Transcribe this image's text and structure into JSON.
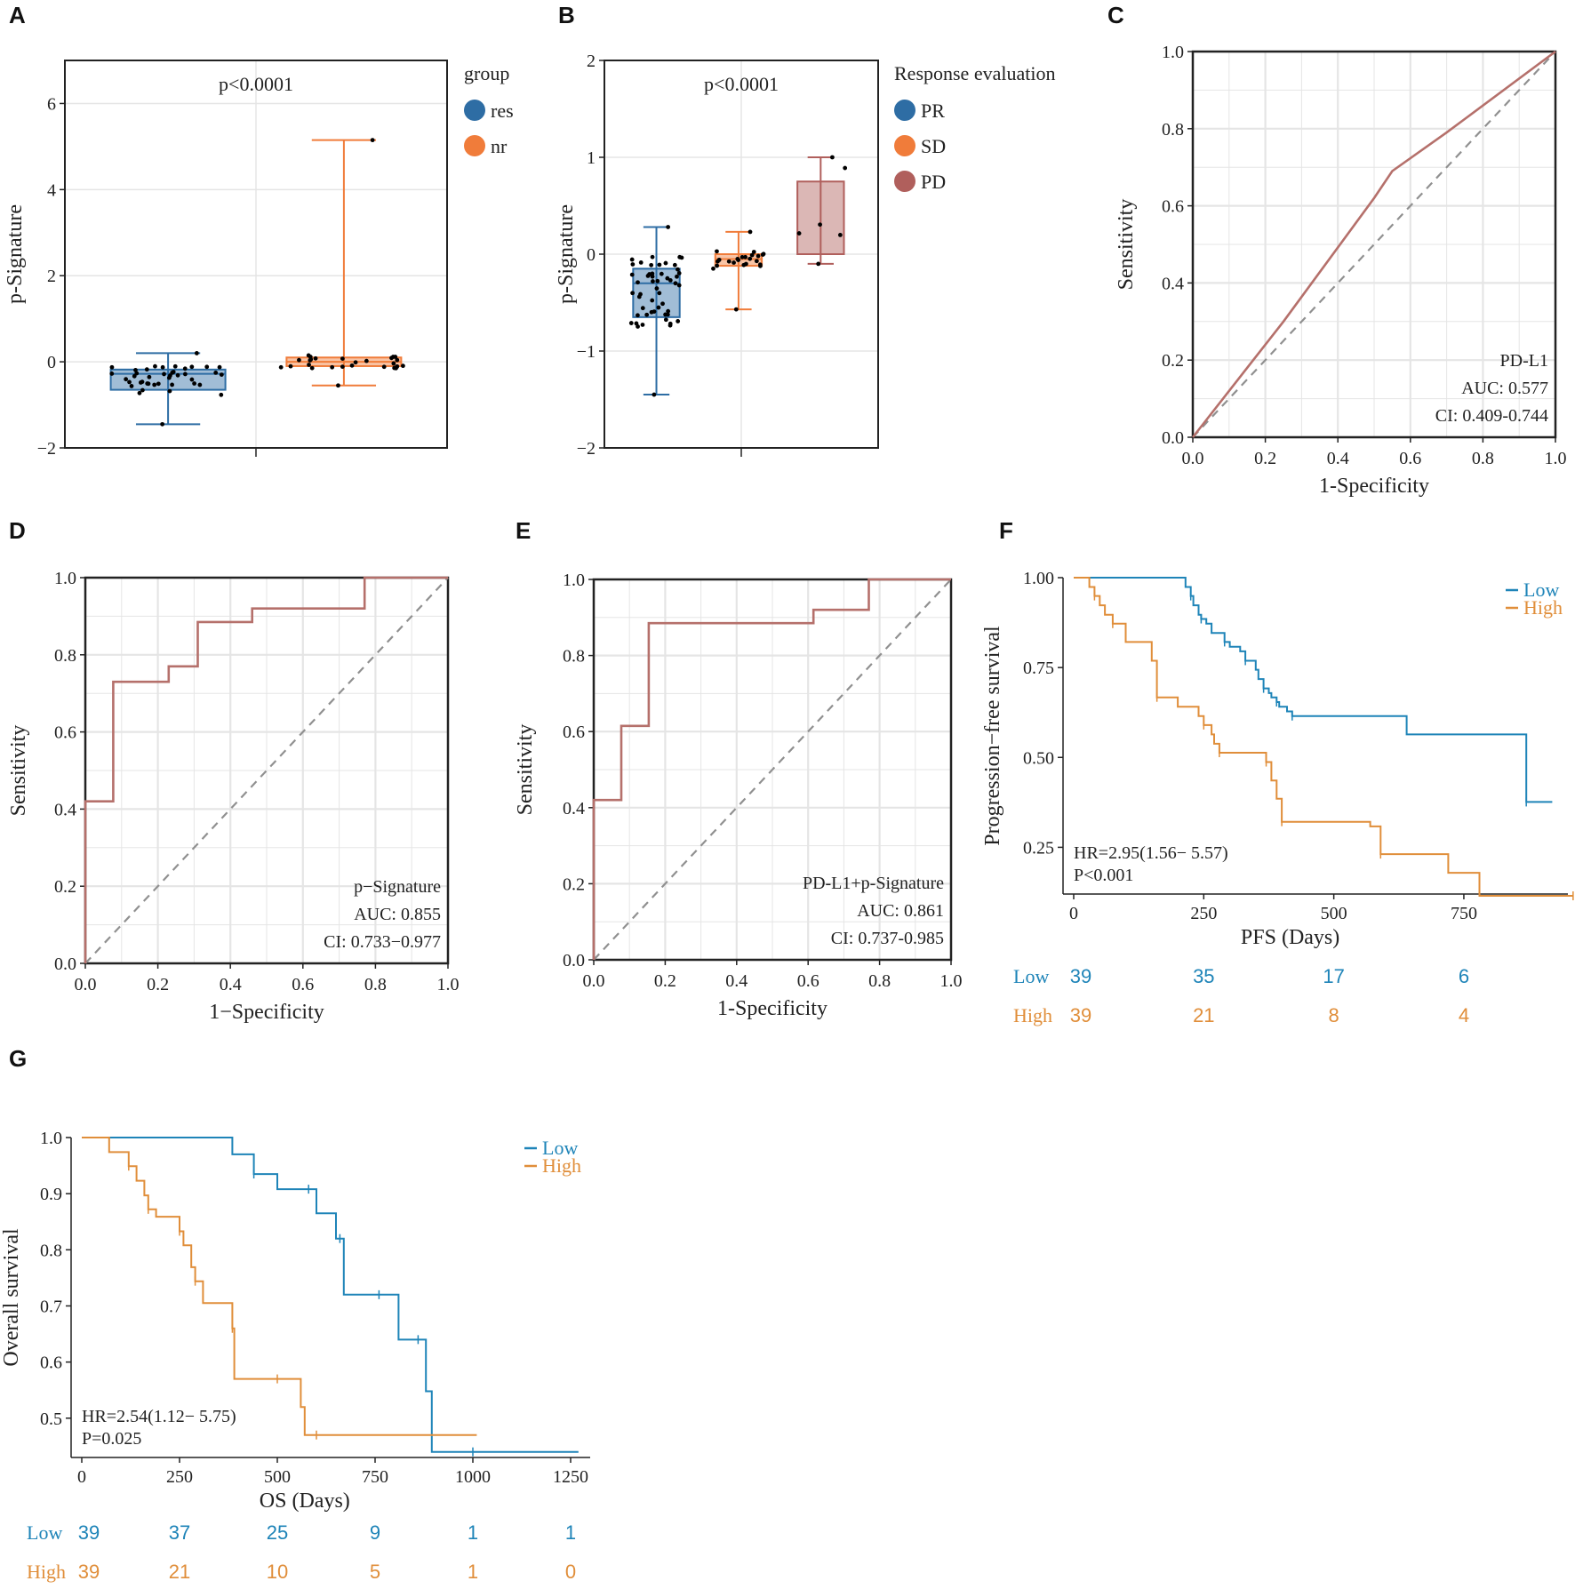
{
  "colors": {
    "blue": "#2e6da4",
    "orange": "#f07c3a",
    "brown": "#b05f5c",
    "roc": "#b5706b",
    "low": "#1e84b8",
    "high": "#e08e3a",
    "grid": "#e5e5e5",
    "diag": "#909090"
  },
  "chart_data": [
    {
      "panel": "A",
      "type": "box",
      "title": "p<0.0001",
      "ylabel": "p-Signature",
      "ylim": [
        -2,
        7
      ],
      "yticks": [
        "−2",
        "0",
        "2",
        "4",
        "6"
      ],
      "legend": {
        "title": "group",
        "placement": "right",
        "labels": [
          "res",
          "nr"
        ]
      },
      "groups": [
        {
          "name": "res",
          "q1": -0.65,
          "median": -0.28,
          "q3": -0.18,
          "whisker_low": -1.45,
          "whisker_high": 0.2
        },
        {
          "name": "nr",
          "q1": -0.1,
          "median": 0.0,
          "q3": 0.1,
          "whisker_low": -0.55,
          "whisker_high": 5.15
        }
      ]
    },
    {
      "panel": "B",
      "type": "box",
      "title": "p<0.0001",
      "ylabel": "p-Signature",
      "ylim": [
        -2,
        2
      ],
      "yticks": [
        "−2",
        "−1",
        "0",
        "1",
        "2"
      ],
      "legend": {
        "title": "Response evaluation",
        "placement": "right",
        "labels": [
          "PR",
          "SD",
          "PD"
        ]
      },
      "groups": [
        {
          "name": "PR",
          "q1": -0.65,
          "median": -0.3,
          "q3": -0.15,
          "whisker_low": -1.45,
          "whisker_high": 0.28
        },
        {
          "name": "SD",
          "q1": -0.12,
          "median": -0.05,
          "q3": 0.0,
          "whisker_low": -0.57,
          "whisker_high": 0.23
        },
        {
          "name": "PD",
          "q1": 0.0,
          "median": 0.0,
          "q3": 0.75,
          "whisker_low": -0.1,
          "whisker_high": 1.0
        }
      ]
    },
    {
      "panel": "C",
      "type": "line",
      "subtype": "roc",
      "xlabel": "1-Specificity",
      "ylabel": "Sensitivity",
      "xlim": [
        0,
        1
      ],
      "ylim": [
        0,
        1
      ],
      "ticks": [
        "0.0",
        "0.2",
        "0.4",
        "0.6",
        "0.8",
        "1.0"
      ],
      "x": [
        0,
        0.25,
        0.5,
        0.55,
        0.7,
        1.0
      ],
      "y": [
        0,
        0.3,
        0.62,
        0.69,
        0.79,
        1.0
      ],
      "annotation": [
        "PD-L1",
        "AUC: 0.577",
        "CI: 0.409-0.744"
      ]
    },
    {
      "panel": "D",
      "type": "line",
      "subtype": "roc",
      "xlabel": "1−Specificity",
      "ylabel": "Sensitivity",
      "xlim": [
        0,
        1
      ],
      "ylim": [
        0,
        1
      ],
      "ticks": [
        "0.0",
        "0.2",
        "0.4",
        "0.6",
        "0.8",
        "1.0"
      ],
      "x": [
        0,
        0,
        0.077,
        0.077,
        0.23,
        0.23,
        0.31,
        0.31,
        0.46,
        0.46,
        0.77,
        0.77,
        1.0
      ],
      "y": [
        0,
        0.42,
        0.42,
        0.73,
        0.73,
        0.77,
        0.77,
        0.885,
        0.885,
        0.92,
        0.92,
        1.0,
        1.0
      ],
      "annotation": [
        "p−Signature",
        "AUC: 0.855",
        "CI: 0.733−0.977"
      ]
    },
    {
      "panel": "E",
      "type": "line",
      "subtype": "roc",
      "xlabel": "1-Specificity",
      "ylabel": "Sensitivity",
      "xlim": [
        0,
        1
      ],
      "ylim": [
        0,
        1
      ],
      "ticks": [
        "0.0",
        "0.2",
        "0.4",
        "0.6",
        "0.8",
        "1.0"
      ],
      "x": [
        0,
        0,
        0.077,
        0.077,
        0.154,
        0.154,
        0.615,
        0.615,
        0.77,
        0.77,
        1.0
      ],
      "y": [
        0,
        0.42,
        0.42,
        0.615,
        0.615,
        0.885,
        0.885,
        0.92,
        0.92,
        1.0,
        1.0
      ],
      "annotation": [
        "PD-L1+p-Signature",
        "AUC: 0.861",
        "CI: 0.737-0.985"
      ]
    },
    {
      "panel": "F",
      "type": "line",
      "subtype": "kaplan-meier",
      "xlabel": "PFS (Days)",
      "ylabel": "Progression−free survival",
      "xlim": [
        0,
        950
      ],
      "ylim": [
        0.12,
        1.0
      ],
      "xticks": [
        "0",
        "250",
        "500",
        "750"
      ],
      "yticks": [
        "1.00",
        "0.75",
        "0.50",
        "0.25"
      ],
      "legend": {
        "placement": "top-right",
        "labels": [
          "Low",
          "High"
        ]
      },
      "annotation": [
        "HR=2.95(1.56− 5.57)",
        "P<0.001"
      ],
      "series": [
        {
          "name": "Low",
          "x": [
            0,
            210,
            215,
            225,
            230,
            240,
            245,
            255,
            265,
            290,
            300,
            320,
            330,
            350,
            355,
            365,
            375,
            380,
            390,
            395,
            410,
            420,
            440,
            640,
            870,
            920
          ],
          "y": [
            1.0,
            1.0,
            0.974,
            0.949,
            0.923,
            0.897,
            0.885,
            0.872,
            0.846,
            0.821,
            0.808,
            0.795,
            0.769,
            0.744,
            0.718,
            0.692,
            0.679,
            0.667,
            0.654,
            0.641,
            0.628,
            0.615,
            0.615,
            0.564,
            0.376,
            0.376
          ]
        },
        {
          "name": "High",
          "x": [
            0,
            25,
            30,
            40,
            50,
            60,
            75,
            100,
            150,
            160,
            200,
            240,
            250,
            265,
            270,
            280,
            300,
            340,
            370,
            380,
            390,
            400,
            470,
            570,
            590,
            720,
            780,
            960
          ],
          "y": [
            1.0,
            1.0,
            0.974,
            0.949,
            0.923,
            0.897,
            0.872,
            0.821,
            0.769,
            0.667,
            0.641,
            0.615,
            0.59,
            0.564,
            0.538,
            0.513,
            0.513,
            0.513,
            0.487,
            0.436,
            0.385,
            0.321,
            0.321,
            0.308,
            0.231,
            0.179,
            0.115,
            0.115
          ]
        }
      ],
      "risk_table": {
        "times": [
          "0",
          "250",
          "500",
          "750"
        ],
        "rows": [
          {
            "label": "Low",
            "values": [
              "39",
              "35",
              "17",
              "6"
            ]
          },
          {
            "label": "High",
            "values": [
              "39",
              "21",
              "8",
              "4"
            ]
          }
        ]
      }
    },
    {
      "panel": "G",
      "type": "line",
      "subtype": "kaplan-meier",
      "xlabel": "OS (Days)",
      "ylabel": "Overall survival",
      "xlim": [
        0,
        1300
      ],
      "ylim": [
        0.43,
        1.0
      ],
      "xticks": [
        "0",
        "250",
        "500",
        "750",
        "1000",
        "1250"
      ],
      "yticks": [
        "1.0",
        "0.9",
        "0.8",
        "0.7",
        "0.6",
        "0.5"
      ],
      "legend": {
        "placement": "top-right",
        "labels": [
          "Low",
          "High"
        ]
      },
      "annotation": [
        "HR=2.54(1.12− 5.75)",
        "P=0.025"
      ],
      "series": [
        {
          "name": "Low",
          "x": [
            0,
            350,
            385,
            440,
            500,
            550,
            580,
            600,
            650,
            660,
            670,
            700,
            760,
            780,
            810,
            860,
            880,
            895,
            1000,
            1270
          ],
          "y": [
            1.0,
            1.0,
            0.97,
            0.935,
            0.908,
            0.908,
            0.908,
            0.865,
            0.82,
            0.82,
            0.72,
            0.72,
            0.72,
            0.72,
            0.64,
            0.64,
            0.548,
            0.44,
            0.44,
            0.44
          ]
        },
        {
          "name": "High",
          "x": [
            0,
            30,
            70,
            120,
            140,
            160,
            170,
            190,
            235,
            250,
            260,
            280,
            290,
            310,
            350,
            385,
            390,
            400,
            500,
            560,
            570,
            600,
            800,
            1010
          ],
          "y": [
            1.0,
            1.0,
            0.974,
            0.949,
            0.923,
            0.897,
            0.872,
            0.859,
            0.859,
            0.833,
            0.808,
            0.769,
            0.744,
            0.705,
            0.705,
            0.66,
            0.57,
            0.57,
            0.57,
            0.52,
            0.47,
            0.47,
            0.47,
            0.47
          ]
        }
      ],
      "risk_table": {
        "times": [
          "0",
          "250",
          "500",
          "750",
          "1000",
          "1250"
        ],
        "rows": [
          {
            "label": "Low",
            "values": [
              "39",
              "37",
              "25",
              "9",
              "1",
              "1"
            ]
          },
          {
            "label": "High",
            "values": [
              "39",
              "21",
              "10",
              "5",
              "1",
              "0"
            ]
          }
        ]
      }
    }
  ]
}
